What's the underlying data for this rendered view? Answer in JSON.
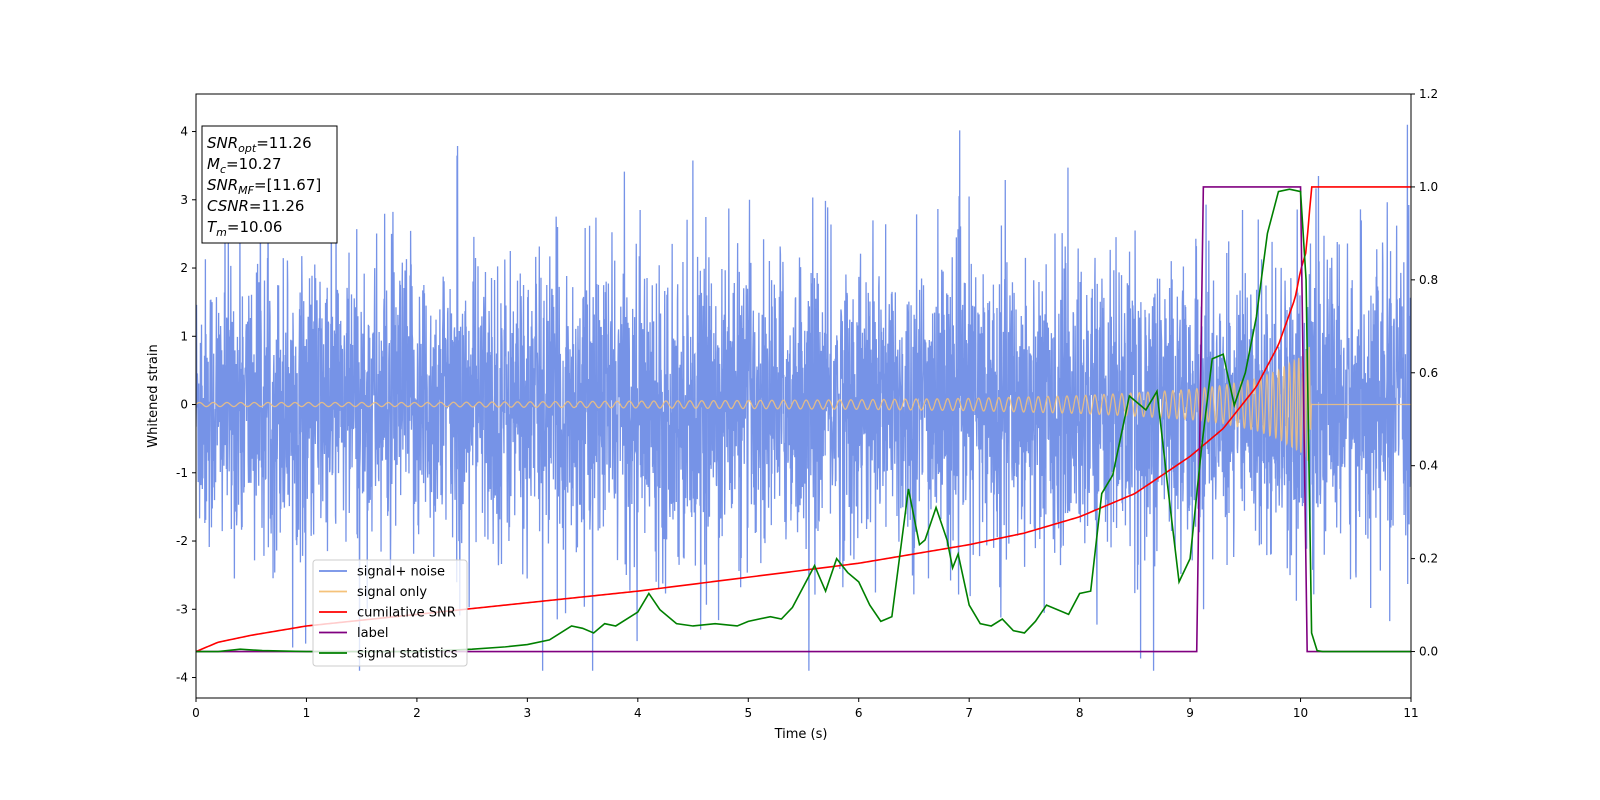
{
  "chart_data": {
    "type": "line",
    "title": "",
    "xlabel": "Time (s)",
    "ylabel": "Whitened strain",
    "y2label": "",
    "xlim": [
      0,
      11
    ],
    "ylim": [
      -4.3,
      4.55
    ],
    "y2lim": [
      -0.1,
      1.2
    ],
    "xticks": [
      "0",
      "1",
      "2",
      "3",
      "4",
      "5",
      "6",
      "7",
      "8",
      "9",
      "10",
      "11"
    ],
    "yticks": [
      "-4",
      "-3",
      "-2",
      "-1",
      "0",
      "1",
      "2",
      "3",
      "4"
    ],
    "y2ticks": [
      "0.0",
      "0.2",
      "0.4",
      "0.6",
      "0.8",
      "1.0",
      "1.2"
    ],
    "grid": false,
    "legend_position": "lower-left",
    "annotation": [
      {
        "label": "SNR",
        "sub": "opt",
        "value": "=11.26"
      },
      {
        "label": "M",
        "sub": "c",
        "value": "=10.27"
      },
      {
        "label": "SNR",
        "sub": "MF",
        "value": "=[11.67]"
      },
      {
        "label": "CSNR",
        "sub": "",
        "value": "=11.26"
      },
      {
        "label": "T",
        "sub": "m",
        "value": "=10.06"
      }
    ],
    "series": [
      {
        "name": "signal+ noise",
        "color": "#6f8de6",
        "axis": "left",
        "description_range": [
          -3.9,
          4.1
        ],
        "typical_envelope": [
          -2.2,
          2.3
        ],
        "x_range": [
          0,
          11
        ]
      },
      {
        "name": "signal only",
        "color": "#f5c27a",
        "axis": "left",
        "envelope_x": [
          0,
          1,
          2,
          3,
          4,
          5,
          6,
          7,
          8,
          8.5,
          9,
          9.3,
          9.6,
          9.8,
          10.0,
          10.08,
          10.1,
          11
        ],
        "envelope_amplitude": [
          0.03,
          0.03,
          0.03,
          0.04,
          0.05,
          0.06,
          0.07,
          0.09,
          0.13,
          0.17,
          0.22,
          0.28,
          0.38,
          0.5,
          0.7,
          0.85,
          0.0,
          0.0
        ]
      },
      {
        "name": "cumilative SNR",
        "color": "#ff0000",
        "axis": "right",
        "x": [
          0,
          0.2,
          0.5,
          1,
          2,
          3,
          4,
          5,
          6,
          7,
          7.5,
          8,
          8.5,
          9,
          9.3,
          9.6,
          9.8,
          9.95,
          10.0,
          10.05,
          10.1,
          11
        ],
        "values": [
          0.0,
          0.02,
          0.035,
          0.055,
          0.08,
          0.105,
          0.13,
          0.16,
          0.19,
          0.23,
          0.255,
          0.29,
          0.34,
          0.42,
          0.48,
          0.57,
          0.66,
          0.76,
          0.82,
          0.86,
          1.0,
          1.0
        ]
      },
      {
        "name": "label",
        "color": "#800080",
        "axis": "right",
        "x": [
          0,
          9.06,
          9.12,
          10.0,
          10.06,
          11
        ],
        "values": [
          0.0,
          0.0,
          1.0,
          1.0,
          0.0,
          0.0
        ]
      },
      {
        "name": "signal statistics",
        "color": "#008000",
        "axis": "right",
        "x": [
          0,
          0.2,
          0.4,
          0.6,
          1,
          2,
          2.5,
          2.8,
          3.0,
          3.2,
          3.4,
          3.5,
          3.6,
          3.7,
          3.8,
          4.0,
          4.1,
          4.2,
          4.35,
          4.5,
          4.7,
          4.9,
          5.0,
          5.2,
          5.3,
          5.4,
          5.6,
          5.7,
          5.8,
          5.9,
          6.0,
          6.1,
          6.2,
          6.3,
          6.45,
          6.55,
          6.6,
          6.7,
          6.8,
          6.85,
          6.9,
          7.0,
          7.1,
          7.2,
          7.3,
          7.4,
          7.5,
          7.6,
          7.7,
          7.9,
          8.0,
          8.1,
          8.2,
          8.3,
          8.45,
          8.6,
          8.7,
          8.8,
          8.9,
          9.0,
          9.1,
          9.2,
          9.3,
          9.4,
          9.5,
          9.6,
          9.7,
          9.8,
          9.9,
          10.0,
          10.05,
          10.1,
          10.15,
          10.2,
          11
        ],
        "values": [
          0.0,
          0.0,
          0.005,
          0.002,
          0.0,
          0.0,
          0.005,
          0.01,
          0.015,
          0.025,
          0.055,
          0.05,
          0.04,
          0.06,
          0.055,
          0.085,
          0.125,
          0.09,
          0.06,
          0.055,
          0.06,
          0.055,
          0.065,
          0.075,
          0.07,
          0.095,
          0.185,
          0.13,
          0.2,
          0.17,
          0.15,
          0.1,
          0.065,
          0.075,
          0.35,
          0.23,
          0.24,
          0.31,
          0.24,
          0.18,
          0.21,
          0.1,
          0.06,
          0.055,
          0.07,
          0.045,
          0.04,
          0.065,
          0.1,
          0.08,
          0.125,
          0.13,
          0.34,
          0.38,
          0.55,
          0.52,
          0.56,
          0.35,
          0.15,
          0.2,
          0.43,
          0.63,
          0.64,
          0.53,
          0.6,
          0.72,
          0.9,
          0.99,
          0.995,
          0.99,
          0.8,
          0.04,
          0.002,
          0.0,
          0.0
        ]
      }
    ]
  }
}
